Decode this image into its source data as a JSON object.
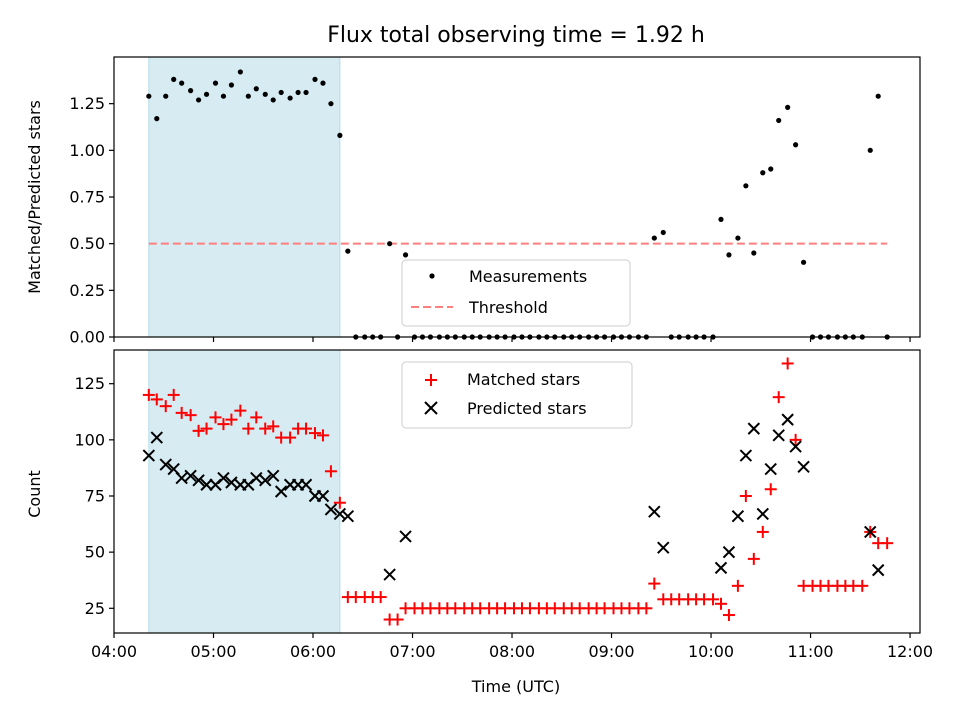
{
  "chart_data": [
    {
      "type": "scatter",
      "title": "Flux total observing time = 1.92 h",
      "xlabel": "",
      "ylabel": "Matched/Predicted stars",
      "xlim_hours": [
        4.0,
        12.1
      ],
      "ylim": [
        0.0,
        1.5
      ],
      "yticks": [
        "0.00",
        "0.25",
        "0.50",
        "0.75",
        "1.00",
        "1.25"
      ],
      "highlight_span_hours": [
        4.35,
        6.27
      ],
      "legend_position": "lower-center",
      "series": [
        {
          "name": "Measurements",
          "marker": "dot",
          "color": "#000000",
          "x": [
            4.35,
            4.43,
            4.52,
            4.6,
            4.68,
            4.77,
            4.85,
            4.93,
            5.02,
            5.1,
            5.18,
            5.27,
            5.35,
            5.43,
            5.52,
            5.6,
            5.68,
            5.77,
            5.85,
            5.93,
            6.02,
            6.1,
            6.18,
            6.27,
            6.35,
            6.43,
            6.52,
            6.6,
            6.68,
            6.77,
            6.85,
            6.93,
            7.02,
            7.1,
            7.18,
            7.27,
            7.35,
            7.43,
            7.52,
            7.6,
            7.68,
            7.77,
            7.85,
            7.93,
            8.02,
            8.1,
            8.18,
            8.27,
            8.35,
            8.43,
            8.52,
            8.6,
            8.68,
            8.77,
            8.85,
            8.93,
            9.02,
            9.1,
            9.18,
            9.27,
            9.35,
            9.43,
            9.52,
            9.6,
            9.68,
            9.77,
            9.85,
            9.93,
            10.02,
            10.1,
            10.18,
            10.27,
            10.35,
            10.43,
            10.52,
            10.6,
            10.68,
            10.77,
            10.85,
            10.93,
            11.02,
            11.1,
            11.18,
            11.27,
            11.35,
            11.43,
            11.52,
            11.6,
            11.68,
            11.77
          ],
          "y": [
            1.29,
            1.17,
            1.29,
            1.38,
            1.36,
            1.32,
            1.27,
            1.3,
            1.36,
            1.29,
            1.35,
            1.42,
            1.29,
            1.33,
            1.3,
            1.27,
            1.31,
            1.28,
            1.31,
            1.31,
            1.38,
            1.36,
            1.25,
            1.08,
            0.46,
            0.0,
            0.0,
            0.0,
            0.0,
            0.5,
            0.0,
            0.44,
            0.0,
            0.0,
            0.0,
            0.0,
            0.0,
            0.0,
            0.0,
            0.0,
            0.0,
            0.0,
            0.0,
            0.0,
            0.0,
            0.0,
            0.0,
            0.0,
            0.0,
            0.0,
            0.0,
            0.0,
            0.0,
            0.0,
            0.0,
            0.0,
            0.0,
            0.0,
            0.0,
            0.0,
            0.0,
            0.53,
            0.56,
            0.0,
            0.0,
            0.0,
            0.0,
            0.0,
            0.0,
            0.63,
            0.44,
            0.53,
            0.81,
            0.45,
            0.88,
            0.9,
            1.16,
            1.23,
            1.03,
            0.4,
            0.0,
            0.0,
            0.0,
            0.0,
            0.0,
            0.0,
            0.0,
            1.0,
            1.29,
            0.0
          ]
        },
        {
          "name": "Threshold",
          "line_style": "dashed",
          "color": "#ff7f7f",
          "x": [
            4.35,
            11.77
          ],
          "y": [
            0.5,
            0.5
          ]
        }
      ]
    },
    {
      "type": "scatter",
      "title": "",
      "xlabel": "Time (UTC)",
      "ylabel": "Count",
      "xlim_hours": [
        4.0,
        12.1
      ],
      "ylim": [
        14,
        140
      ],
      "yticks": [
        "25",
        "50",
        "75",
        "100",
        "125"
      ],
      "xticks": [
        "04:00",
        "05:00",
        "06:00",
        "07:00",
        "08:00",
        "09:00",
        "10:00",
        "11:00",
        "12:00"
      ],
      "highlight_span_hours": [
        4.35,
        6.27
      ],
      "legend_position": "top-center",
      "series": [
        {
          "name": "Matched stars",
          "marker": "plus",
          "color": "#ff0000",
          "x": [
            4.35,
            4.43,
            4.52,
            4.6,
            4.68,
            4.77,
            4.85,
            4.93,
            5.02,
            5.1,
            5.18,
            5.27,
            5.35,
            5.43,
            5.52,
            5.6,
            5.68,
            5.77,
            5.85,
            5.93,
            6.02,
            6.1,
            6.18,
            6.27,
            6.35,
            6.43,
            6.52,
            6.6,
            6.68,
            6.77,
            6.85,
            6.93,
            7.02,
            7.1,
            7.18,
            7.27,
            7.35,
            7.43,
            7.52,
            7.6,
            7.68,
            7.77,
            7.85,
            7.93,
            8.02,
            8.1,
            8.18,
            8.27,
            8.35,
            8.43,
            8.52,
            8.6,
            8.68,
            8.77,
            8.85,
            8.93,
            9.02,
            9.1,
            9.18,
            9.27,
            9.35,
            9.43,
            9.52,
            9.6,
            9.68,
            9.77,
            9.85,
            9.93,
            10.02,
            10.1,
            10.18,
            10.27,
            10.35,
            10.43,
            10.52,
            10.6,
            10.68,
            10.77,
            10.85,
            10.93,
            11.02,
            11.1,
            11.18,
            11.27,
            11.35,
            11.43,
            11.52,
            11.6,
            11.68,
            11.77
          ],
          "y": [
            120,
            118,
            115,
            120,
            112,
            111,
            104,
            105,
            110,
            107,
            109,
            113,
            105,
            110,
            105,
            106,
            101,
            101,
            105,
            105,
            103,
            102,
            86,
            72,
            30,
            30,
            30,
            30,
            30,
            20,
            20,
            25,
            25,
            25,
            25,
            25,
            25,
            25,
            25,
            25,
            25,
            25,
            25,
            25,
            25,
            25,
            25,
            25,
            25,
            25,
            25,
            25,
            25,
            25,
            25,
            25,
            25,
            25,
            25,
            25,
            25,
            36,
            29,
            29,
            29,
            29,
            29,
            29,
            29,
            27,
            22,
            35,
            75,
            47,
            59,
            78,
            119,
            134,
            100,
            35,
            35,
            35,
            35,
            35,
            35,
            35,
            35,
            59,
            54,
            54
          ]
        },
        {
          "name": "Predicted stars",
          "marker": "x",
          "color": "#000000",
          "x": [
            4.35,
            4.43,
            4.52,
            4.6,
            4.68,
            4.77,
            4.85,
            4.93,
            5.02,
            5.1,
            5.18,
            5.27,
            5.35,
            5.43,
            5.52,
            5.6,
            5.68,
            5.77,
            5.85,
            5.93,
            6.02,
            6.1,
            6.18,
            6.27,
            6.35,
            6.77,
            6.93,
            9.43,
            9.52,
            10.1,
            10.18,
            10.27,
            10.35,
            10.43,
            10.52,
            10.6,
            10.68,
            10.77,
            10.85,
            10.93,
            11.6,
            11.68
          ],
          "y": [
            93,
            101,
            89,
            87,
            83,
            84,
            82,
            80,
            80,
            83,
            81,
            80,
            80,
            83,
            82,
            84,
            77,
            80,
            80,
            80,
            75,
            75,
            69,
            67,
            66,
            40,
            57,
            68,
            52,
            43,
            50,
            66,
            93,
            105,
            67,
            87,
            102,
            109,
            97,
            88,
            59,
            42
          ]
        }
      ]
    }
  ]
}
